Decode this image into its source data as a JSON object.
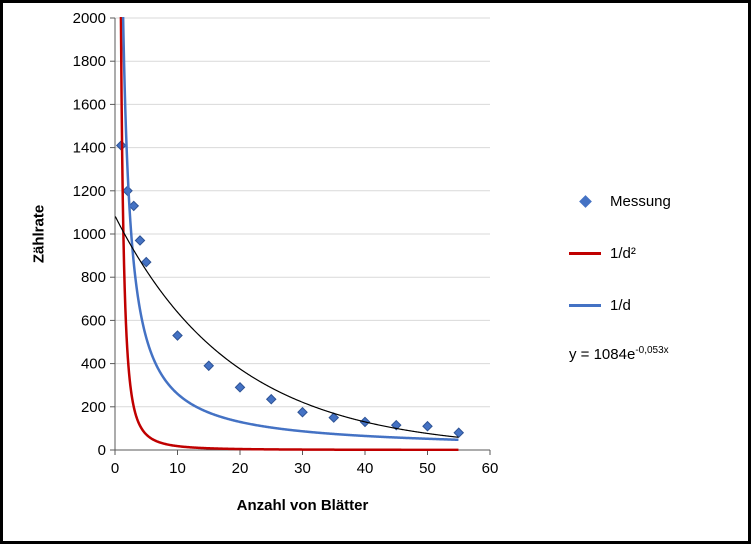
{
  "chart_data": {
    "type": "scatter",
    "title": "",
    "xlabel": "Anzahl von Blätter",
    "ylabel": "Zählrate",
    "xlim": [
      0,
      60
    ],
    "ylim": [
      0,
      2000
    ],
    "x_ticks": [
      0,
      10,
      20,
      30,
      40,
      50,
      60
    ],
    "y_ticks": [
      0,
      200,
      400,
      600,
      800,
      1000,
      1200,
      1400,
      1600,
      1800,
      2000
    ],
    "grid": "horizontal-only",
    "grid_color": "#D9D9D9",
    "axis_color": "#595959",
    "background_color": "#FFFFFF",
    "frame_color": "#000000",
    "curve_x_max": 55,
    "series": [
      {
        "name": "Messung",
        "kind": "points",
        "marker": "diamond",
        "color": "#4472C4",
        "edge_color": "#2E5395",
        "points": [
          [
            1,
            1410
          ],
          [
            2,
            1200
          ],
          [
            3,
            1130
          ],
          [
            4,
            970
          ],
          [
            5,
            870
          ],
          [
            10,
            530
          ],
          [
            15,
            390
          ],
          [
            20,
            290
          ],
          [
            25,
            235
          ],
          [
            30,
            175
          ],
          [
            35,
            150
          ],
          [
            40,
            130
          ],
          [
            45,
            115
          ],
          [
            50,
            110
          ],
          [
            55,
            80
          ]
        ]
      },
      {
        "name": "1/d²",
        "kind": "curve",
        "formula": "inverse_square",
        "a": 1800,
        "color": "#C00000",
        "width": 2.5
      },
      {
        "name": "1/d",
        "kind": "curve",
        "formula": "inverse",
        "a": 2600,
        "color": "#4472C4",
        "width": 2.5
      },
      {
        "name": "trendline",
        "kind": "curve",
        "formula": "exponential",
        "a": 1084,
        "b": -0.053,
        "color": "#000000",
        "width": 1.2
      }
    ],
    "legend": {
      "position": "right",
      "entries": [
        {
          "label": "Messung",
          "marker": "diamond",
          "color": "#4472C4"
        },
        {
          "label": "1/d²",
          "marker": "line",
          "color": "#C00000"
        },
        {
          "label": "1/d",
          "marker": "line",
          "color": "#4472C4"
        }
      ]
    },
    "annotation": {
      "base": "y = 1084e",
      "exponent": "-0,053x"
    }
  }
}
